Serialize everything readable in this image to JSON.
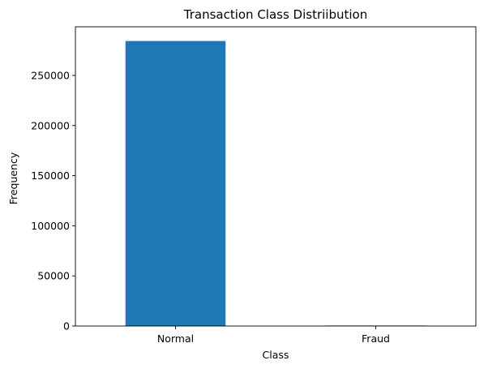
{
  "chart_data": {
    "type": "bar",
    "title": "Transaction Class Distriibution",
    "xlabel": "Class",
    "ylabel": "Frequency",
    "categories": [
      "Normal",
      "Fraud"
    ],
    "values": [
      284315,
      492
    ],
    "ylim": [
      0,
      298530
    ],
    "yticks": [
      0,
      50000,
      100000,
      150000,
      200000,
      250000
    ],
    "bar_color": "#1f77b4",
    "grid": false,
    "legend": "none"
  }
}
